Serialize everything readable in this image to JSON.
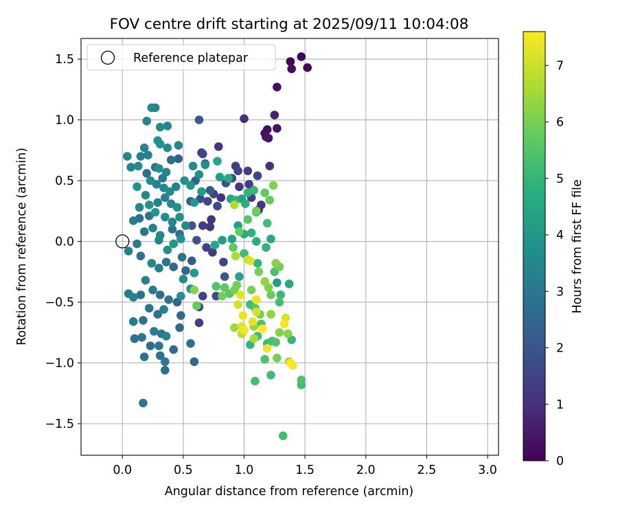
{
  "chart_data": {
    "type": "scatter",
    "title": "FOV centre drift starting at 2025/09/11 10:04:08",
    "xlabel": "Angular distance from reference (arcmin)",
    "ylabel": "Rotation from reference (arcmin)",
    "xlim": [
      -0.34,
      3.09
    ],
    "ylim": [
      -1.76,
      1.67
    ],
    "xticks": [
      0.0,
      0.5,
      1.0,
      1.5,
      2.0,
      2.5,
      3.0
    ],
    "yticks": [
      -1.5,
      -1.0,
      -0.5,
      0.0,
      0.5,
      1.0,
      1.5
    ],
    "xtick_labels": [
      "0.0",
      "0.5",
      "1.0",
      "1.5",
      "2.0",
      "2.5",
      "3.0"
    ],
    "ytick_labels": [
      "−1.5",
      "−1.0",
      "−0.5",
      "0.0",
      "0.5",
      "1.0",
      "1.5"
    ],
    "grid": true,
    "legend": {
      "position": "upper-left",
      "entries": [
        "Reference platepar"
      ]
    },
    "reference_point": {
      "x": 0.0,
      "y": 0.0
    },
    "colorbar": {
      "label": "Hours from first FF file",
      "colormap": "viridis",
      "range": [
        0,
        7.6
      ],
      "ticks": [
        0,
        1,
        2,
        3,
        4,
        5,
        6,
        7
      ],
      "tick_labels": [
        "0",
        "1",
        "2",
        "3",
        "4",
        "5",
        "6",
        "7"
      ]
    },
    "points": [
      {
        "x": 1.47,
        "y": 1.52,
        "c": 0.1
      },
      {
        "x": 1.52,
        "y": 1.43,
        "c": 0.15
      },
      {
        "x": 1.38,
        "y": 1.48,
        "c": 0.1
      },
      {
        "x": 1.39,
        "y": 1.42,
        "c": 0.2
      },
      {
        "x": 1.27,
        "y": 1.27,
        "c": 0.3
      },
      {
        "x": 1.27,
        "y": 0.93,
        "c": 0.4
      },
      {
        "x": 1.19,
        "y": 0.92,
        "c": 0.3
      },
      {
        "x": 1.18,
        "y": 0.86,
        "c": 0.35
      },
      {
        "x": 1.2,
        "y": 0.85,
        "c": 0.45
      },
      {
        "x": 1.17,
        "y": 0.89,
        "c": 0.25
      },
      {
        "x": 1.25,
        "y": 1.04,
        "c": 0.7
      },
      {
        "x": 1.0,
        "y": 1.01,
        "c": 1.0
      },
      {
        "x": 0.63,
        "y": 1.0,
        "c": 2.2
      },
      {
        "x": 1.21,
        "y": 0.62,
        "c": 1.1
      },
      {
        "x": 0.79,
        "y": 0.78,
        "c": 1.2
      },
      {
        "x": 0.65,
        "y": 0.73,
        "c": 1.4
      },
      {
        "x": 0.66,
        "y": 0.72,
        "c": 1.6
      },
      {
        "x": 0.68,
        "y": 0.64,
        "c": 1.8
      },
      {
        "x": 0.93,
        "y": 0.62,
        "c": 1.3
      },
      {
        "x": 0.95,
        "y": 0.58,
        "c": 1.5
      },
      {
        "x": 1.03,
        "y": 0.58,
        "c": 1.4
      },
      {
        "x": 1.11,
        "y": 0.54,
        "c": 1.6
      },
      {
        "x": 0.9,
        "y": 0.52,
        "c": 1.7
      },
      {
        "x": 0.85,
        "y": 0.48,
        "c": 1.9
      },
      {
        "x": 0.96,
        "y": 0.45,
        "c": 1.2
      },
      {
        "x": 1.04,
        "y": 0.47,
        "c": 1.3
      },
      {
        "x": 0.72,
        "y": 0.42,
        "c": 2.1
      },
      {
        "x": 0.6,
        "y": 0.5,
        "c": 2.3
      },
      {
        "x": 0.75,
        "y": 0.39,
        "c": 1.5
      },
      {
        "x": 0.81,
        "y": 0.36,
        "c": 1.1
      },
      {
        "x": 1.06,
        "y": 0.36,
        "c": 1.4
      },
      {
        "x": 1.14,
        "y": 0.3,
        "c": 1.2
      },
      {
        "x": 1.12,
        "y": 0.26,
        "c": 1.3
      },
      {
        "x": 0.7,
        "y": 0.33,
        "c": 1.6
      },
      {
        "x": 0.64,
        "y": 0.35,
        "c": 1.8
      },
      {
        "x": 0.78,
        "y": 0.29,
        "c": 1.7
      },
      {
        "x": 0.56,
        "y": 0.33,
        "c": 2.4
      },
      {
        "x": 0.73,
        "y": 0.18,
        "c": 1.1
      },
      {
        "x": 0.66,
        "y": 0.13,
        "c": 1.4
      },
      {
        "x": 0.57,
        "y": 0.13,
        "c": 2.0
      },
      {
        "x": 0.72,
        "y": 0.12,
        "c": 1.2
      },
      {
        "x": 0.61,
        "y": 0.01,
        "c": 1.9
      },
      {
        "x": 0.69,
        "y": -0.05,
        "c": 1.5
      },
      {
        "x": 0.74,
        "y": -0.09,
        "c": 1.3
      },
      {
        "x": 0.83,
        "y": -0.17,
        "c": 1.6
      },
      {
        "x": 0.57,
        "y": -0.16,
        "c": 2.2
      },
      {
        "x": 0.63,
        "y": -0.54,
        "c": 1.8
      },
      {
        "x": 0.63,
        "y": -0.67,
        "c": 1.4
      },
      {
        "x": 0.77,
        "y": -0.45,
        "c": 1.7
      },
      {
        "x": 0.66,
        "y": -0.45,
        "c": 1.5
      },
      {
        "x": 0.84,
        "y": -0.29,
        "c": 2.0
      },
      {
        "x": 0.2,
        "y": 0.56,
        "c": 2.7
      },
      {
        "x": 0.27,
        "y": 0.61,
        "c": 2.9
      },
      {
        "x": 0.33,
        "y": 0.52,
        "c": 3.1
      },
      {
        "x": 0.4,
        "y": 0.67,
        "c": 2.6
      },
      {
        "x": 0.46,
        "y": 0.68,
        "c": 2.4
      },
      {
        "x": 0.35,
        "y": 0.36,
        "c": 3.2
      },
      {
        "x": 0.29,
        "y": 0.32,
        "c": 3.3
      },
      {
        "x": 0.22,
        "y": 0.21,
        "c": 3.0
      },
      {
        "x": 0.14,
        "y": 0.19,
        "c": 2.8
      },
      {
        "x": 0.09,
        "y": 0.17,
        "c": 3.2
      },
      {
        "x": 0.25,
        "y": 0.11,
        "c": 3.4
      },
      {
        "x": 0.31,
        "y": 0.05,
        "c": 3.5
      },
      {
        "x": 0.18,
        "y": 0.08,
        "c": 2.9
      },
      {
        "x": 0.41,
        "y": 0.1,
        "c": 3.0
      },
      {
        "x": 0.47,
        "y": 0.06,
        "c": 2.7
      },
      {
        "x": 0.12,
        "y": -0.02,
        "c": 3.1
      },
      {
        "x": 0.05,
        "y": -0.08,
        "c": 3.3
      },
      {
        "x": 0.15,
        "y": -0.12,
        "c": 2.8
      },
      {
        "x": 0.24,
        "y": -0.18,
        "c": 3.5
      },
      {
        "x": 0.3,
        "y": -0.22,
        "c": 3.2
      },
      {
        "x": 0.36,
        "y": -0.17,
        "c": 3.0
      },
      {
        "x": 0.42,
        "y": -0.21,
        "c": 2.6
      },
      {
        "x": 0.49,
        "y": -0.13,
        "c": 2.9
      },
      {
        "x": 0.52,
        "y": -0.24,
        "c": 2.5
      },
      {
        "x": 0.19,
        "y": -0.32,
        "c": 3.3
      },
      {
        "x": 0.25,
        "y": -0.4,
        "c": 3.1
      },
      {
        "x": 0.31,
        "y": -0.44,
        "c": 2.7
      },
      {
        "x": 0.38,
        "y": -0.48,
        "c": 3.0
      },
      {
        "x": 0.45,
        "y": -0.5,
        "c": 2.4
      },
      {
        "x": 0.05,
        "y": -0.43,
        "c": 3.2
      },
      {
        "x": 0.09,
        "y": -0.46,
        "c": 3.4
      },
      {
        "x": 0.15,
        "y": -0.44,
        "c": 2.9
      },
      {
        "x": 0.22,
        "y": -0.55,
        "c": 3.0
      },
      {
        "x": 0.29,
        "y": -0.6,
        "c": 2.8
      },
      {
        "x": 0.34,
        "y": -0.56,
        "c": 3.3
      },
      {
        "x": 0.48,
        "y": -0.61,
        "c": 2.6
      },
      {
        "x": 0.09,
        "y": -0.66,
        "c": 3.1
      },
      {
        "x": 0.17,
        "y": -0.65,
        "c": 2.9
      },
      {
        "x": 0.26,
        "y": -0.74,
        "c": 3.2
      },
      {
        "x": 0.32,
        "y": -0.76,
        "c": 3.0
      },
      {
        "x": 0.36,
        "y": -0.78,
        "c": 3.4
      },
      {
        "x": 0.47,
        "y": -0.71,
        "c": 2.5
      },
      {
        "x": 0.1,
        "y": -0.8,
        "c": 2.8
      },
      {
        "x": 0.16,
        "y": -0.79,
        "c": 3.1
      },
      {
        "x": 0.23,
        "y": -0.86,
        "c": 2.7
      },
      {
        "x": 0.3,
        "y": -0.86,
        "c": 3.0
      },
      {
        "x": 0.42,
        "y": -0.89,
        "c": 2.6
      },
      {
        "x": 0.31,
        "y": -0.94,
        "c": 2.9
      },
      {
        "x": 0.18,
        "y": -0.95,
        "c": 2.8
      },
      {
        "x": 0.35,
        "y": -0.99,
        "c": 3.1
      },
      {
        "x": 0.35,
        "y": -1.06,
        "c": 2.7
      },
      {
        "x": 0.56,
        "y": -0.84,
        "c": 2.9
      },
      {
        "x": 0.59,
        "y": -0.99,
        "c": 2.6
      },
      {
        "x": 0.17,
        "y": -1.33,
        "c": 3.0
      },
      {
        "x": 0.24,
        "y": 1.1,
        "c": 3.6
      },
      {
        "x": 0.27,
        "y": 1.1,
        "c": 3.4
      },
      {
        "x": 0.37,
        "y": 0.95,
        "c": 3.5
      },
      {
        "x": 0.31,
        "y": 0.94,
        "c": 3.7
      },
      {
        "x": 0.2,
        "y": 0.99,
        "c": 3.5
      },
      {
        "x": 0.29,
        "y": 0.83,
        "c": 3.8
      },
      {
        "x": 0.46,
        "y": 0.79,
        "c": 3.6
      },
      {
        "x": 0.18,
        "y": 0.77,
        "c": 3.4
      },
      {
        "x": 0.31,
        "y": 0.8,
        "c": 3.9
      },
      {
        "x": 0.37,
        "y": 0.77,
        "c": 3.7
      },
      {
        "x": 0.21,
        "y": 0.71,
        "c": 3.3
      },
      {
        "x": 0.15,
        "y": 0.7,
        "c": 3.2
      },
      {
        "x": 0.04,
        "y": 0.7,
        "c": 3.5
      },
      {
        "x": 0.07,
        "y": 0.61,
        "c": 3.4
      },
      {
        "x": 0.13,
        "y": 0.62,
        "c": 3.6
      },
      {
        "x": 0.3,
        "y": 0.6,
        "c": 3.8
      },
      {
        "x": 0.36,
        "y": 0.57,
        "c": 3.5
      },
      {
        "x": 0.23,
        "y": 0.5,
        "c": 3.7
      },
      {
        "x": 0.28,
        "y": 0.47,
        "c": 3.4
      },
      {
        "x": 0.34,
        "y": 0.44,
        "c": 3.6
      },
      {
        "x": 0.12,
        "y": 0.45,
        "c": 3.9
      },
      {
        "x": 0.19,
        "y": 0.38,
        "c": 3.5
      },
      {
        "x": 0.39,
        "y": 0.41,
        "c": 3.7
      },
      {
        "x": 0.44,
        "y": 0.45,
        "c": 3.4
      },
      {
        "x": 0.58,
        "y": 0.62,
        "c": 3.6
      },
      {
        "x": 0.63,
        "y": 0.55,
        "c": 3.8
      },
      {
        "x": 0.68,
        "y": 0.63,
        "c": 3.7
      },
      {
        "x": 0.51,
        "y": 0.5,
        "c": 3.9
      },
      {
        "x": 0.56,
        "y": 0.46,
        "c": 4.0
      },
      {
        "x": 0.14,
        "y": 0.28,
        "c": 3.5
      },
      {
        "x": 0.22,
        "y": 0.3,
        "c": 3.8
      },
      {
        "x": 0.4,
        "y": 0.31,
        "c": 3.6
      },
      {
        "x": 0.45,
        "y": 0.28,
        "c": 3.9
      },
      {
        "x": 0.27,
        "y": 0.24,
        "c": 4.0
      },
      {
        "x": 0.35,
        "y": 0.2,
        "c": 3.7
      },
      {
        "x": 0.41,
        "y": 0.16,
        "c": 3.5
      },
      {
        "x": 0.47,
        "y": 0.2,
        "c": 3.8
      },
      {
        "x": 0.52,
        "y": 0.13,
        "c": 3.6
      },
      {
        "x": 0.59,
        "y": 0.32,
        "c": 4.0
      },
      {
        "x": 0.65,
        "y": 0.41,
        "c": 4.2
      },
      {
        "x": 0.78,
        "y": 0.66,
        "c": 4.5
      },
      {
        "x": 0.8,
        "y": 0.53,
        "c": 4.3
      },
      {
        "x": 0.87,
        "y": 0.52,
        "c": 4.6
      },
      {
        "x": 0.93,
        "y": 0.34,
        "c": 4.8
      },
      {
        "x": 0.98,
        "y": 0.35,
        "c": 4.4
      },
      {
        "x": 1.01,
        "y": 0.31,
        "c": 4.7
      },
      {
        "x": 0.89,
        "y": 0.35,
        "c": 4.5
      },
      {
        "x": 0.95,
        "y": 0.13,
        "c": 4.3
      },
      {
        "x": 1.0,
        "y": 0.06,
        "c": 4.6
      },
      {
        "x": 0.9,
        "y": 0.02,
        "c": 4.4
      },
      {
        "x": 0.82,
        "y": 0.01,
        "c": 4.2
      },
      {
        "x": 0.76,
        "y": -0.03,
        "c": 4.5
      },
      {
        "x": 1.06,
        "y": 0.07,
        "c": 4.8
      },
      {
        "x": 1.1,
        "y": 0.0,
        "c": 4.7
      },
      {
        "x": 0.96,
        "y": -0.29,
        "c": 4.4
      },
      {
        "x": 1.18,
        "y": -0.05,
        "c": 4.9
      },
      {
        "x": 1.22,
        "y": 0.02,
        "c": 4.6
      },
      {
        "x": 1.27,
        "y": -0.34,
        "c": 4.3
      },
      {
        "x": 1.37,
        "y": -0.35,
        "c": 4.5
      },
      {
        "x": 0.3,
        "y": 0.01,
        "c": 3.6
      },
      {
        "x": 0.37,
        "y": -0.07,
        "c": 3.8
      },
      {
        "x": 0.42,
        "y": -0.02,
        "c": 4.0
      },
      {
        "x": 0.48,
        "y": 0.02,
        "c": 3.9
      },
      {
        "x": 0.5,
        "y": -0.31,
        "c": 3.7
      },
      {
        "x": 0.56,
        "y": -0.39,
        "c": 3.9
      },
      {
        "x": 0.59,
        "y": -0.26,
        "c": 4.1
      },
      {
        "x": 0.48,
        "y": -0.45,
        "c": 3.8
      },
      {
        "x": 1.03,
        "y": 0.4,
        "c": 5.0
      },
      {
        "x": 1.1,
        "y": 0.24,
        "c": 5.2
      },
      {
        "x": 1.08,
        "y": 0.42,
        "c": 5.1
      },
      {
        "x": 1.19,
        "y": 0.15,
        "c": 5.3
      },
      {
        "x": 1.0,
        "y": -0.1,
        "c": 5.2
      },
      {
        "x": 1.11,
        "y": -0.18,
        "c": 5.0
      },
      {
        "x": 1.25,
        "y": -0.25,
        "c": 5.4
      },
      {
        "x": 1.3,
        "y": -0.44,
        "c": 5.1
      },
      {
        "x": 1.29,
        "y": -0.5,
        "c": 5.3
      },
      {
        "x": 1.05,
        "y": -0.52,
        "c": 5.2
      },
      {
        "x": 1.09,
        "y": -0.55,
        "c": 5.5
      },
      {
        "x": 1.14,
        "y": -0.68,
        "c": 5.4
      },
      {
        "x": 1.11,
        "y": -0.78,
        "c": 5.2
      },
      {
        "x": 1.19,
        "y": -0.84,
        "c": 5.1
      },
      {
        "x": 1.23,
        "y": -0.82,
        "c": 5.3
      },
      {
        "x": 1.26,
        "y": -0.83,
        "c": 5.5
      },
      {
        "x": 1.05,
        "y": -0.85,
        "c": 5.0
      },
      {
        "x": 1.17,
        "y": -0.97,
        "c": 5.4
      },
      {
        "x": 1.22,
        "y": -1.1,
        "c": 5.2
      },
      {
        "x": 1.09,
        "y": -1.15,
        "c": 5.3
      },
      {
        "x": 1.39,
        "y": -0.81,
        "c": 5.1
      },
      {
        "x": 1.47,
        "y": -1.14,
        "c": 5.4
      },
      {
        "x": 1.47,
        "y": -1.18,
        "c": 5.2
      },
      {
        "x": 1.32,
        "y": -1.6,
        "c": 5.3
      },
      {
        "x": 0.77,
        "y": -0.37,
        "c": 5.5
      },
      {
        "x": 0.84,
        "y": -0.38,
        "c": 5.7
      },
      {
        "x": 0.82,
        "y": -0.45,
        "c": 5.9
      },
      {
        "x": 0.88,
        "y": -0.43,
        "c": 5.6
      },
      {
        "x": 0.59,
        "y": -0.4,
        "c": 6.2
      },
      {
        "x": 0.61,
        "y": -0.53,
        "c": 5.8
      },
      {
        "x": 0.92,
        "y": -0.4,
        "c": 6.0
      },
      {
        "x": 0.94,
        "y": -0.36,
        "c": 5.9
      },
      {
        "x": 0.91,
        "y": -0.05,
        "c": 5.7
      },
      {
        "x": 0.96,
        "y": 0.08,
        "c": 5.8
      },
      {
        "x": 1.03,
        "y": 0.18,
        "c": 5.6
      },
      {
        "x": 1.1,
        "y": 0.25,
        "c": 5.9
      },
      {
        "x": 1.17,
        "y": 0.4,
        "c": 5.7
      },
      {
        "x": 1.21,
        "y": 0.34,
        "c": 5.8
      },
      {
        "x": 1.24,
        "y": 0.46,
        "c": 6.1
      },
      {
        "x": 1.12,
        "y": -0.25,
        "c": 6.0
      },
      {
        "x": 1.17,
        "y": -0.33,
        "c": 6.3
      },
      {
        "x": 1.2,
        "y": -0.38,
        "c": 6.1
      },
      {
        "x": 1.22,
        "y": -0.44,
        "c": 5.8
      },
      {
        "x": 1.26,
        "y": -0.18,
        "c": 6.2
      },
      {
        "x": 1.29,
        "y": -0.21,
        "c": 5.9
      },
      {
        "x": 1.06,
        "y": -0.4,
        "c": 6.0
      },
      {
        "x": 1.1,
        "y": -0.48,
        "c": 6.2
      },
      {
        "x": 1.22,
        "y": -0.6,
        "c": 6.3
      },
      {
        "x": 1.13,
        "y": -0.6,
        "c": 6.0
      },
      {
        "x": 1.08,
        "y": -0.7,
        "c": 6.4
      },
      {
        "x": 1.29,
        "y": -0.75,
        "c": 6.1
      },
      {
        "x": 1.36,
        "y": -0.76,
        "c": 6.2
      },
      {
        "x": 1.27,
        "y": -0.96,
        "c": 6.0
      },
      {
        "x": 1.37,
        "y": -0.99,
        "c": 6.3
      },
      {
        "x": 0.92,
        "y": -0.71,
        "c": 6.5
      },
      {
        "x": 0.98,
        "y": -0.76,
        "c": 6.8
      },
      {
        "x": 1.08,
        "y": -0.8,
        "c": 6.6
      },
      {
        "x": 0.92,
        "y": 0.3,
        "c": 6.7
      },
      {
        "x": 0.93,
        "y": -0.12,
        "c": 6.6
      },
      {
        "x": 1.05,
        "y": -0.16,
        "c": 7.2
      },
      {
        "x": 1.03,
        "y": -0.15,
        "c": 7.0
      },
      {
        "x": 0.97,
        "y": -0.44,
        "c": 7.3
      },
      {
        "x": 0.95,
        "y": -0.52,
        "c": 7.1
      },
      {
        "x": 0.99,
        "y": -0.61,
        "c": 7.4
      },
      {
        "x": 0.98,
        "y": -0.7,
        "c": 7.2
      },
      {
        "x": 1.0,
        "y": -0.73,
        "c": 7.5
      },
      {
        "x": 1.07,
        "y": -0.66,
        "c": 7.3
      },
      {
        "x": 1.1,
        "y": -0.48,
        "c": 7.4
      },
      {
        "x": 1.1,
        "y": -0.58,
        "c": 7.1
      },
      {
        "x": 1.15,
        "y": -0.72,
        "c": 7.6
      },
      {
        "x": 1.19,
        "y": -0.88,
        "c": 7.4
      },
      {
        "x": 1.34,
        "y": -0.63,
        "c": 7.2
      },
      {
        "x": 1.33,
        "y": -0.68,
        "c": 7.5
      },
      {
        "x": 1.38,
        "y": -1.0,
        "c": 7.6
      },
      {
        "x": 1.4,
        "y": -1.02,
        "c": 7.5
      }
    ]
  }
}
